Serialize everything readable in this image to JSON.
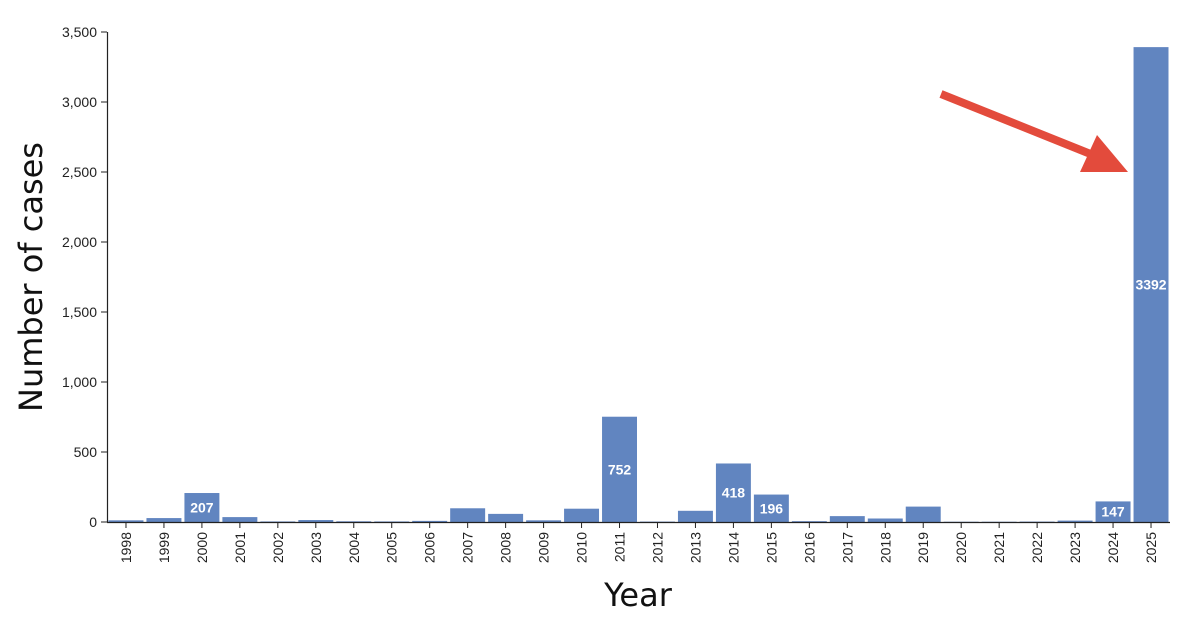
{
  "chart_data": {
    "type": "bar",
    "title": "",
    "xlabel": "Year",
    "ylabel": "Number of cases",
    "ylim": [
      0,
      3500
    ],
    "yticks": [
      0,
      500,
      1000,
      1500,
      2000,
      2500,
      3000,
      3500
    ],
    "ytick_labels": [
      "0",
      "500",
      "1,000",
      "1,500",
      "2,000",
      "2,500",
      "3,000",
      "3,500"
    ],
    "categories": [
      "1998",
      "1999",
      "2000",
      "2001",
      "2002",
      "2003",
      "2004",
      "2005",
      "2006",
      "2007",
      "2008",
      "2009",
      "2010",
      "2011",
      "2012",
      "2013",
      "2014",
      "2015",
      "2016",
      "2017",
      "2018",
      "2019",
      "2020",
      "2021",
      "2022",
      "2023",
      "2024",
      "2025"
    ],
    "values": [
      12,
      28,
      207,
      35,
      4,
      14,
      5,
      4,
      8,
      98,
      58,
      12,
      95,
      752,
      3,
      80,
      418,
      196,
      6,
      42,
      25,
      110,
      2,
      2,
      3,
      10,
      147,
      3392
    ],
    "data_labels": {
      "2000": "207",
      "2011": "752",
      "2014": "418",
      "2015": "196",
      "2024": "147",
      "2025": "3392"
    },
    "grid": false,
    "legend": "none",
    "annotation": "arrow-pointing-to-2025-bar",
    "colors": {
      "bar": "#6185c0",
      "arrow": "#e34b3c",
      "axis": "#222222"
    }
  }
}
